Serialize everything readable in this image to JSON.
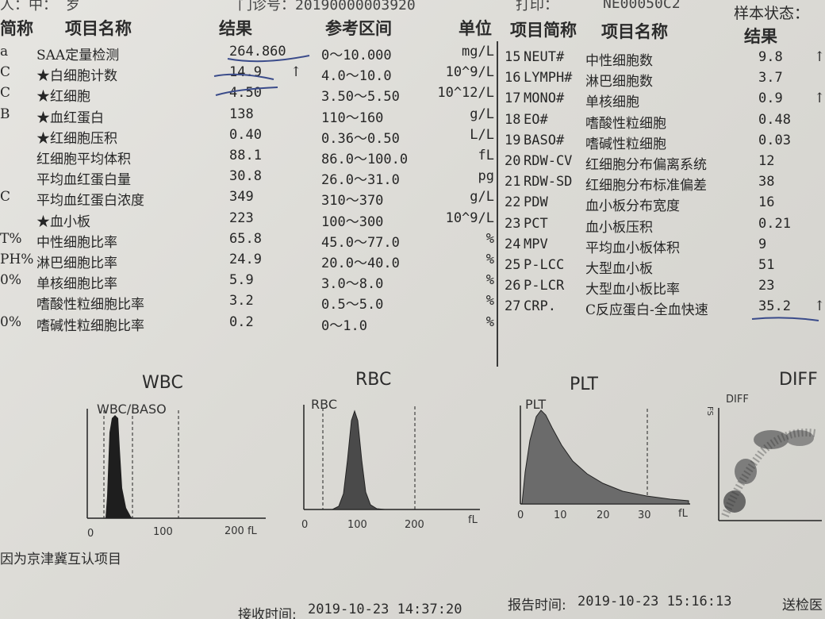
{
  "top_strip": {
    "left_fragment": "人：中：   岁",
    "mid_fragment": "门诊号：20190000003920",
    "right_fragment": "打印：",
    "device": "NE00050C2",
    "sample_status_label": "样本状态："
  },
  "left_headers": {
    "code": "简称",
    "name": "项目名称",
    "result": "结果",
    "ref": "参考区间",
    "unit": "单位"
  },
  "right_headers": {
    "code": "项目简称",
    "name": "项目名称",
    "result": "结果"
  },
  "left_rows": [
    {
      "code": "a",
      "name": "SAA定量检测",
      "result": "264.860",
      "flag": "",
      "ref": "0～10.000",
      "unit": "mg/L"
    },
    {
      "code": "C",
      "name": "★白细胞计数",
      "result": "14.9",
      "flag": "↑",
      "ref": "4.0～10.0",
      "unit": "10^9/L"
    },
    {
      "code": "C",
      "name": "★红细胞",
      "result": "4.50",
      "flag": "",
      "ref": "3.50～5.50",
      "unit": "10^12/L"
    },
    {
      "code": "B",
      "name": "★血红蛋白",
      "result": "138",
      "flag": "",
      "ref": "110～160",
      "unit": "g/L"
    },
    {
      "code": "",
      "name": "★红细胞压积",
      "result": "0.40",
      "flag": "",
      "ref": "0.36～0.50",
      "unit": "L/L"
    },
    {
      "code": "",
      "name": "红细胞平均体积",
      "result": "88.1",
      "flag": "",
      "ref": "86.0～100.0",
      "unit": "fL"
    },
    {
      "code": "",
      "name": "平均血红蛋白量",
      "result": "30.8",
      "flag": "",
      "ref": "26.0～31.0",
      "unit": "pg"
    },
    {
      "code": "C",
      "name": "平均血红蛋白浓度",
      "result": "349",
      "flag": "",
      "ref": "310～370",
      "unit": "g/L"
    },
    {
      "code": "",
      "name": "★血小板",
      "result": "223",
      "flag": "",
      "ref": "100～300",
      "unit": "10^9/L"
    },
    {
      "code": "T%",
      "name": "中性细胞比率",
      "result": "65.8",
      "flag": "",
      "ref": "45.0～77.0",
      "unit": "%"
    },
    {
      "code": "PH%",
      "name": "淋巴细胞比率",
      "result": "24.9",
      "flag": "",
      "ref": "20.0～40.0",
      "unit": "%"
    },
    {
      "code": "0%",
      "name": "单核细胞比率",
      "result": "5.9",
      "flag": "",
      "ref": "3.0～8.0",
      "unit": "%"
    },
    {
      "code": "",
      "name": "嗜酸性粒细胞比率",
      "result": "3.2",
      "flag": "",
      "ref": "0.5～5.0",
      "unit": "%"
    },
    {
      "code": "0%",
      "name": "嗜碱性粒细胞比率",
      "result": "0.2",
      "flag": "",
      "ref": "0～1.0",
      "unit": "%"
    }
  ],
  "right_rows": [
    {
      "no": "15",
      "code": "NEUT#",
      "name": "中性细胞数",
      "result": "9.8",
      "flag": "↑"
    },
    {
      "no": "16",
      "code": "LYMPH#",
      "name": "淋巴细胞数",
      "result": "3.7",
      "flag": ""
    },
    {
      "no": "17",
      "code": "MONO#",
      "name": "单核细胞",
      "result": "0.9",
      "flag": "↑"
    },
    {
      "no": "18",
      "code": "EO#",
      "name": "嗜酸性粒细胞",
      "result": "0.48",
      "flag": ""
    },
    {
      "no": "19",
      "code": "BASO#",
      "name": "嗜碱性粒细胞",
      "result": "0.03",
      "flag": ""
    },
    {
      "no": "20",
      "code": "RDW-CV",
      "name": "红细胞分布偏离系统",
      "result": "12",
      "flag": ""
    },
    {
      "no": "21",
      "code": "RDW-SD",
      "name": "红细胞分布标准偏差",
      "result": "38",
      "flag": ""
    },
    {
      "no": "22",
      "code": "PDW",
      "name": "血小板分布宽度",
      "result": "16",
      "flag": ""
    },
    {
      "no": "23",
      "code": "PCT",
      "name": "血小板压积",
      "result": "0.21",
      "flag": ""
    },
    {
      "no": "24",
      "code": "MPV",
      "name": "平均血小板体积",
      "result": "9",
      "flag": ""
    },
    {
      "no": "25",
      "code": "P-LCC",
      "name": "大型血小板",
      "result": "51",
      "flag": ""
    },
    {
      "no": "26",
      "code": "P-LCR",
      "name": "大型血小板比率",
      "result": "23",
      "flag": ""
    },
    {
      "no": "27",
      "code": "CRP.",
      "name": "C反应蛋白-全血快速",
      "result": "35.2",
      "flag": "↑"
    }
  ],
  "histograms": {
    "wbc": {
      "title": "WBC",
      "inner": "WBC/BASO",
      "ticks": [
        "0",
        "100",
        "200 fL"
      ]
    },
    "rbc": {
      "title": "RBC",
      "inner": "RBC",
      "ticks": [
        "0",
        "100",
        "200",
        "fL"
      ]
    },
    "plt": {
      "title": "PLT",
      "inner": "PLT",
      "ticks": [
        "0",
        "10",
        "20",
        "30",
        "fL"
      ]
    },
    "diff": {
      "title": "DIFF",
      "inner": "DIFF",
      "axis": "FS"
    }
  },
  "footer": {
    "note": "因为京津冀互认项目",
    "received_label": "接收时间:",
    "received_time": "2019-10-23  14:37:20",
    "report_label": "报告时间:",
    "report_time": "2019-10-23  15:16:13",
    "send_label": "送检医"
  }
}
